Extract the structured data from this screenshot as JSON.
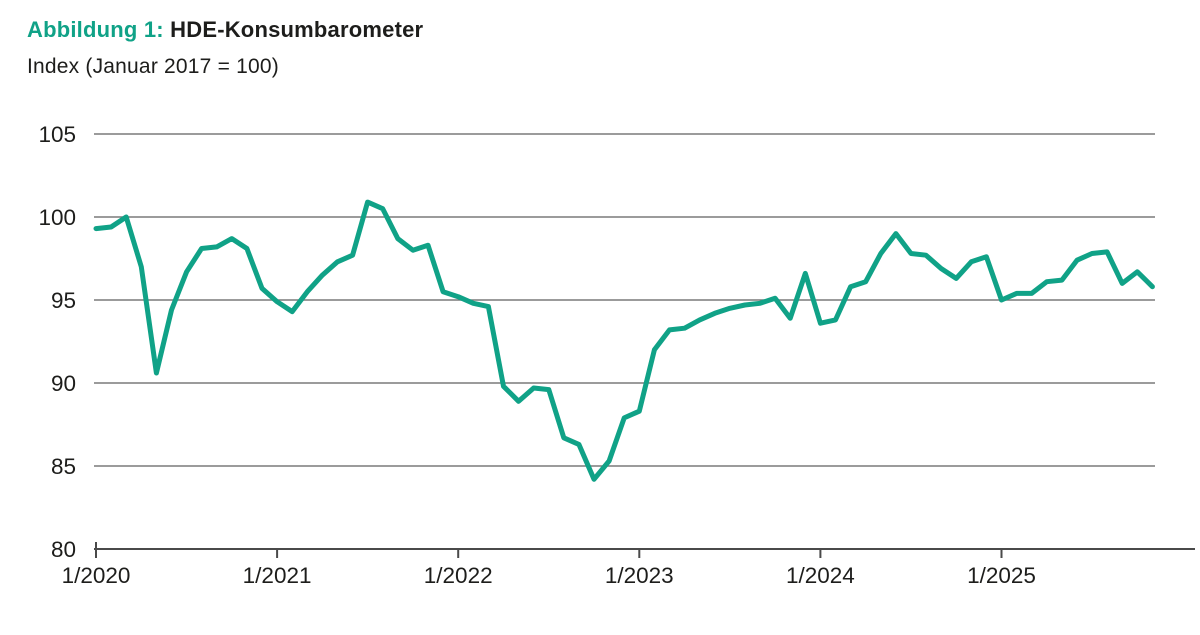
{
  "header": {
    "figure_label": "Abbildung 1:",
    "title": "HDE-Konsumbarometer",
    "subtitle": "Index (Januar 2017 = 100)"
  },
  "colors": {
    "accent_teal": "#10a287",
    "gridline_gray": "#7a7a7a",
    "axis_dark": "#4a4a4a",
    "text": "#1d1d1b"
  },
  "chart_data": {
    "type": "line",
    "title": "Abbildung 1: HDE-Konsumbarometer",
    "subtitle": "Index (Januar 2017 = 100)",
    "series_name": "HDE-Konsumbarometer",
    "legend": false,
    "grid": true,
    "ylim": [
      80,
      105
    ],
    "y_ticks": [
      80,
      85,
      90,
      95,
      100,
      105
    ],
    "x_tick_labels": [
      "1/2020",
      "1/2021",
      "1/2022",
      "1/2023",
      "1/2024",
      "1/2025"
    ],
    "x_labels": [
      "1/2020",
      "2/2020",
      "3/2020",
      "4/2020",
      "5/2020",
      "6/2020",
      "7/2020",
      "8/2020",
      "9/2020",
      "10/2020",
      "11/2020",
      "12/2020",
      "1/2021",
      "2/2021",
      "3/2021",
      "4/2021",
      "5/2021",
      "6/2021",
      "7/2021",
      "8/2021",
      "9/2021",
      "10/2021",
      "11/2021",
      "12/2021",
      "1/2022",
      "2/2022",
      "3/2022",
      "4/2022",
      "5/2022",
      "6/2022",
      "7/2022",
      "8/2022",
      "9/2022",
      "10/2022",
      "11/2022",
      "12/2022",
      "1/2023",
      "2/2023",
      "3/2023",
      "4/2023",
      "5/2023",
      "6/2023",
      "7/2023",
      "8/2023",
      "9/2023",
      "10/2023",
      "11/2023",
      "12/2023",
      "1/2024",
      "2/2024",
      "3/2024",
      "4/2024",
      "5/2024",
      "6/2024",
      "7/2024",
      "8/2024",
      "9/2024",
      "10/2024",
      "11/2024",
      "12/2024",
      "1/2025",
      "2/2025",
      "3/2025",
      "4/2025",
      "5/2025",
      "6/2025",
      "7/2025",
      "8/2025",
      "9/2025",
      "10/2025",
      "11/2025"
    ],
    "values": [
      99.3,
      99.4,
      100.0,
      97.0,
      90.6,
      94.4,
      96.7,
      98.1,
      98.2,
      98.7,
      98.1,
      95.7,
      94.9,
      94.3,
      95.5,
      96.5,
      97.3,
      97.7,
      100.9,
      100.5,
      98.7,
      98.0,
      98.3,
      95.5,
      95.2,
      94.8,
      94.6,
      89.8,
      88.9,
      89.7,
      89.6,
      86.7,
      86.3,
      84.2,
      85.3,
      87.9,
      88.3,
      92.0,
      93.2,
      93.3,
      93.8,
      94.2,
      94.5,
      94.7,
      94.8,
      95.1,
      93.9,
      96.6,
      93.6,
      93.8,
      95.8,
      96.1,
      97.8,
      99.0,
      97.8,
      97.7,
      96.9,
      96.3,
      97.3,
      97.6,
      95.0,
      95.4,
      95.4,
      96.1,
      96.2,
      97.4,
      97.8,
      97.9,
      96.0,
      96.7,
      95.8
    ]
  }
}
